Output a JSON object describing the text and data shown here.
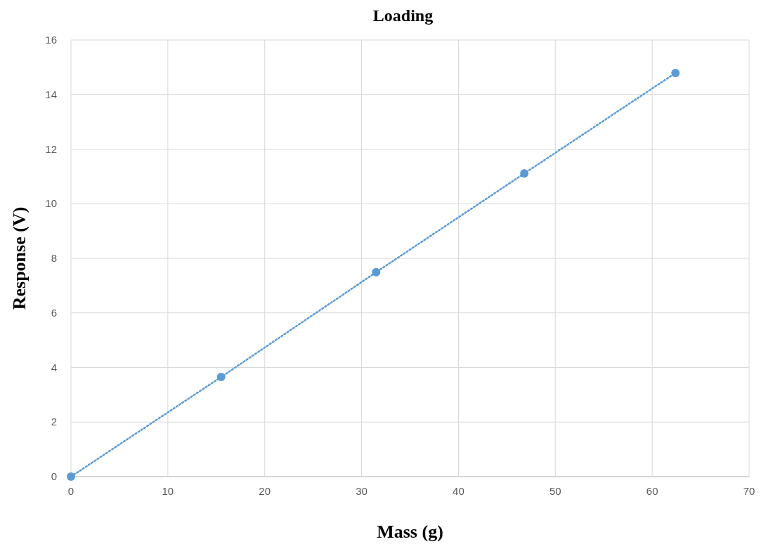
{
  "chart_data": {
    "type": "line",
    "title": "Loading",
    "xlabel": "Mass (g)",
    "ylabel": "Response (V)",
    "x": [
      0,
      15.5,
      31.5,
      46.8,
      62.4
    ],
    "series": [
      {
        "color": "#5b9bd5",
        "values": [
          0,
          3.65,
          7.49,
          11.11,
          14.79
        ]
      }
    ],
    "xlim": [
      0,
      70
    ],
    "xticks": [
      0,
      10,
      20,
      30,
      40,
      50,
      60,
      70
    ],
    "ylim": [
      0,
      16
    ],
    "yticks": [
      0,
      2,
      4,
      6,
      8,
      10,
      12,
      14,
      16
    ],
    "grid": true,
    "marker": "circle",
    "line_style": "dotted"
  }
}
